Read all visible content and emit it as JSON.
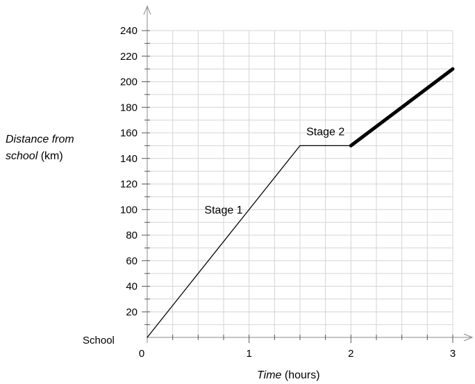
{
  "chart_data": {
    "type": "line",
    "x": {
      "min": 0,
      "max": 3,
      "tick_values": [
        0,
        1,
        2,
        3
      ],
      "tick_labels": [
        "0",
        "1",
        "2",
        "3"
      ],
      "minor_step": 0.25
    },
    "y": {
      "min": 0,
      "max": 240,
      "tick_values": [
        20,
        40,
        60,
        80,
        100,
        120,
        140,
        160,
        180,
        200,
        220,
        240
      ],
      "tick_labels": [
        "20",
        "40",
        "60",
        "80",
        "100",
        "120",
        "140",
        "160",
        "180",
        "200",
        "220",
        "240"
      ],
      "origin_label": "School",
      "minor_step": 10
    },
    "xlabel_italic": "Time",
    "xlabel_rest": " (hours)",
    "ylabel_line1": "Distance from",
    "ylabel_line2_italic": "school",
    "ylabel_line2_rest": " (km)",
    "grid": true,
    "segments": [
      {
        "x": [
          0,
          1.5
        ],
        "y": [
          0,
          150
        ],
        "weight": "thin"
      },
      {
        "x": [
          1.5,
          2
        ],
        "y": [
          150,
          150
        ],
        "weight": "thin"
      },
      {
        "x": [
          2,
          3
        ],
        "y": [
          150,
          210
        ],
        "weight": "thick"
      }
    ],
    "annotations": [
      {
        "text": "Stage 1",
        "x": 0.75,
        "y": 97
      },
      {
        "text": "Stage 2",
        "x": 1.75,
        "y": 158
      }
    ]
  }
}
